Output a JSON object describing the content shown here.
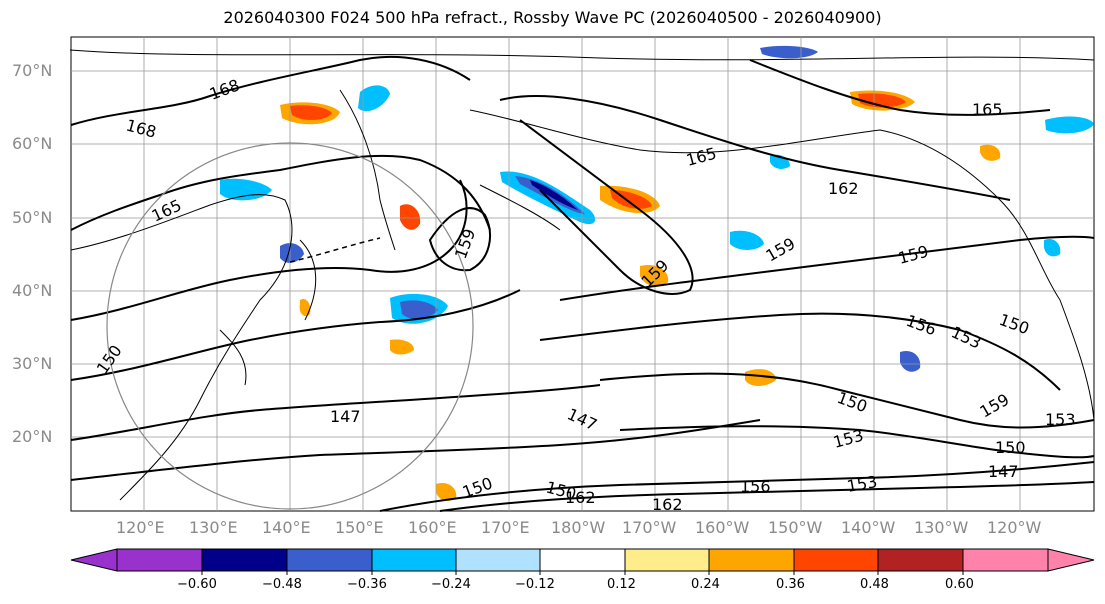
{
  "title": "2026040300 F024 500 hPa refract., Rossby Wave PC (2026040500 - 2026040900)",
  "lat_labels": [
    "70°N",
    "60°N",
    "50°N",
    "40°N",
    "30°N",
    "20°N"
  ],
  "lon_labels": [
    "120°E",
    "130°E",
    "140°E",
    "150°E",
    "160°E",
    "170°E",
    "180°W",
    "170°W",
    "160°W",
    "150°W",
    "140°W",
    "130°W",
    "120°W"
  ],
  "colorbar": {
    "ticks": [
      "−0.60",
      "−0.48",
      "−0.36",
      "−0.24",
      "−0.12",
      "0.12",
      "0.24",
      "0.36",
      "0.48",
      "0.60"
    ],
    "colors": [
      "#9932cc",
      "#00008b",
      "#3a5fcd",
      "#00bfff",
      "#b0e2ff",
      "#ffffff",
      "#ffec8b",
      "#ffa500",
      "#ff4500",
      "#b22222",
      "#ff82ab"
    ]
  },
  "contour_labels": [
    "168",
    "168",
    "165",
    "159",
    "150",
    "147",
    "150",
    "159",
    "162",
    "165",
    "159",
    "159",
    "156",
    "153",
    "150",
    "150",
    "153",
    "159",
    "153",
    "150",
    "147",
    "150",
    "156",
    "162",
    "147",
    "162",
    "165",
    "153"
  ],
  "colors": {
    "contour": "#000000",
    "grid": "#999999",
    "circle": "#888888",
    "axis_label": "#8a8a8a"
  }
}
